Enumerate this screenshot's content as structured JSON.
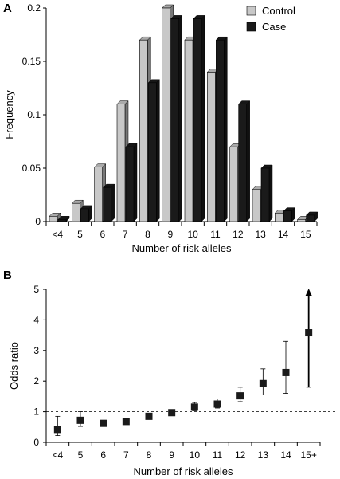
{
  "panels": {
    "a_label": "A",
    "b_label": "B"
  },
  "chart_data": [
    {
      "type": "bar",
      "panel": "A",
      "categories": [
        "<4",
        "5",
        "6",
        "7",
        "8",
        "9",
        "10",
        "11",
        "12",
        "13",
        "14",
        "15"
      ],
      "series": [
        {
          "name": "Control",
          "color": "#c8c8c8",
          "values": [
            0.005,
            0.017,
            0.051,
            0.11,
            0.17,
            0.2,
            0.17,
            0.14,
            0.07,
            0.03,
            0.008,
            0.002
          ]
        },
        {
          "name": "Case",
          "color": "#1a1a1a",
          "values": [
            0.002,
            0.012,
            0.032,
            0.07,
            0.13,
            0.19,
            0.19,
            0.17,
            0.11,
            0.05,
            0.01,
            0.006
          ]
        }
      ],
      "ylabel": "Frequency",
      "xlabel": "Number of risk alleles",
      "ylim": [
        0,
        0.2
      ],
      "yticks": [
        "0",
        "0.05",
        "0.1",
        "0.15",
        "0.2"
      ],
      "ytick_values": [
        0,
        0.05,
        0.1,
        0.15,
        0.2
      ],
      "legend_position": "top-right",
      "grid": false
    },
    {
      "type": "scatter",
      "panel": "B",
      "categories": [
        "<4",
        "5",
        "6",
        "7",
        "8",
        "9",
        "10",
        "11",
        "12",
        "13",
        "14",
        "15+"
      ],
      "values": [
        0.42,
        0.72,
        0.62,
        0.68,
        0.85,
        0.97,
        1.15,
        1.25,
        1.52,
        1.92,
        2.28,
        3.58
      ],
      "lower": [
        0.22,
        0.52,
        0.55,
        0.62,
        0.77,
        0.9,
        1.03,
        1.12,
        1.33,
        1.55,
        1.6,
        1.8
      ],
      "upper": [
        0.85,
        1.0,
        0.72,
        0.75,
        0.95,
        1.04,
        1.3,
        1.42,
        1.8,
        2.4,
        3.3,
        5.0
      ],
      "last_upper_arrow": true,
      "reference_line": 1,
      "ylabel": "Odds ratio",
      "xlabel": "Number of risk alleles",
      "ylim": [
        0,
        5
      ],
      "yticks": [
        "0",
        "1",
        "2",
        "3",
        "4",
        "5"
      ],
      "ytick_values": [
        0,
        1,
        2,
        3,
        4,
        5
      ],
      "grid": false
    }
  ]
}
